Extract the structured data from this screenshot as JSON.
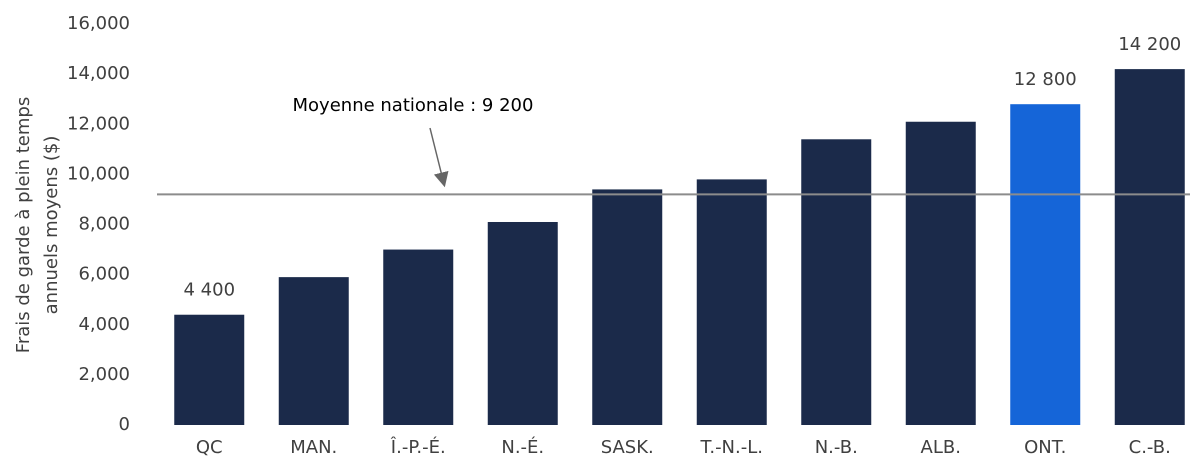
{
  "chart_data": {
    "type": "bar",
    "ylabel": [
      "Frais de garde à plein temps",
      "annuels moyens ($)"
    ],
    "categories": [
      "QC",
      "MAN.",
      "Î.-P.-É.",
      "N.-É.",
      "SASK.",
      "T.-N.-L.",
      "N.-B.",
      "ALB.",
      "ONT.",
      "C.-B."
    ],
    "values": [
      4400,
      5900,
      7000,
      8100,
      9400,
      9800,
      11400,
      12100,
      12800,
      14200
    ],
    "value_labels": [
      "4 400",
      null,
      null,
      null,
      null,
      null,
      null,
      null,
      "12 800",
      "14 200"
    ],
    "colors": [
      "#1b2a4a",
      "#1b2a4a",
      "#1b2a4a",
      "#1b2a4a",
      "#1b2a4a",
      "#1b2a4a",
      "#1b2a4a",
      "#1b2a4a",
      "#1565d8",
      "#1b2a4a"
    ],
    "reference_line": {
      "value": 9200,
      "label": "Moyenne nationale : 9 200",
      "color": "#8c8c8c"
    },
    "ylim": [
      0,
      16000
    ],
    "yticks": [
      0,
      {
        "value": 2000,
        "label": "2,000"
      },
      {
        "value": 4000,
        "label": "4,000"
      },
      {
        "value": 6000,
        "label": "6,000"
      },
      {
        "value": 8000,
        "label": "8,000"
      },
      {
        "value": 10000,
        "label": "10,000"
      },
      {
        "value": 12000,
        "label": "12,000"
      },
      {
        "value": 14000,
        "label": "14,000"
      },
      {
        "value": 16000,
        "label": "16,000"
      }
    ],
    "grid": false
  }
}
